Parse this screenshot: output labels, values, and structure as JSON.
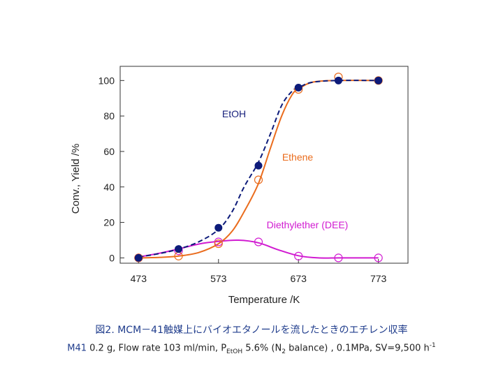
{
  "chart_data": {
    "type": "line",
    "xlabel": "Temperature /K",
    "ylabel": "Conv., Yield /%",
    "xlim": [
      450,
      810
    ],
    "ylim": [
      -3,
      108
    ],
    "xticks": [
      473,
      573,
      673,
      773
    ],
    "yticks": [
      0,
      20,
      40,
      60,
      80,
      100
    ],
    "grid": false,
    "series": [
      {
        "name": "EtOH",
        "label_color": "#1a237e",
        "color": "#0d1b7a",
        "line_style": "dashed",
        "marker": "filled-circle",
        "x": [
          473,
          523,
          573,
          623,
          673,
          723,
          773
        ],
        "y": [
          0,
          5,
          17,
          52,
          96,
          100,
          100
        ],
        "curve": [
          [
            473,
            0.5
          ],
          [
            500,
            2.5
          ],
          [
            523,
            5
          ],
          [
            548,
            9
          ],
          [
            573,
            16
          ],
          [
            590,
            26
          ],
          [
            605,
            40
          ],
          [
            623,
            54
          ],
          [
            638,
            70
          ],
          [
            652,
            86
          ],
          [
            665,
            94
          ],
          [
            673,
            96
          ],
          [
            690,
            99
          ],
          [
            723,
            100
          ],
          [
            773,
            100
          ]
        ]
      },
      {
        "name": "Ethene",
        "label_color": "#ea6c1d",
        "color": "#ea6c1d",
        "line_style": "solid",
        "marker": "open-circle",
        "x": [
          473,
          523,
          573,
          623,
          673,
          723,
          773
        ],
        "y": [
          0,
          1,
          8,
          44,
          95,
          102,
          100
        ],
        "curve": [
          [
            473,
            0
          ],
          [
            500,
            0.3
          ],
          [
            523,
            1
          ],
          [
            548,
            3
          ],
          [
            573,
            8
          ],
          [
            590,
            15
          ],
          [
            605,
            26
          ],
          [
            623,
            42
          ],
          [
            638,
            62
          ],
          [
            652,
            80
          ],
          [
            665,
            92
          ],
          [
            673,
            95
          ],
          [
            690,
            99
          ],
          [
            723,
            100
          ],
          [
            773,
            100
          ]
        ]
      },
      {
        "name": "Diethylether (DEE)",
        "label_color": "#d11bd1",
        "color": "#d11bd1",
        "line_style": "solid",
        "marker": "open-circle",
        "x": [
          473,
          523,
          573,
          623,
          673,
          723,
          773
        ],
        "y": [
          0,
          4,
          9,
          9,
          1,
          0,
          0
        ],
        "curve": [
          [
            473,
            0.5
          ],
          [
            498,
            2.5
          ],
          [
            523,
            5
          ],
          [
            548,
            7.8
          ],
          [
            573,
            9.3
          ],
          [
            598,
            10
          ],
          [
            623,
            8.5
          ],
          [
            648,
            4.5
          ],
          [
            673,
            1.2
          ],
          [
            698,
            0
          ],
          [
            723,
            0
          ],
          [
            748,
            0
          ],
          [
            773,
            0
          ]
        ]
      }
    ]
  },
  "caption": {
    "figure_title": "図2. MCM－41触媒上にバイオエタノールを流したときのエチレン収率",
    "cond_prefix": "M41",
    "cond_part1": " 0.2 g, Flow rate 103 ml/min, P",
    "cond_sub1": "EtOH",
    "cond_part2": " 5.6% (N",
    "cond_sub2": "2",
    "cond_part3": " balance) , 0.1MPa,  SV=9,500 h",
    "cond_sup": "-1"
  }
}
